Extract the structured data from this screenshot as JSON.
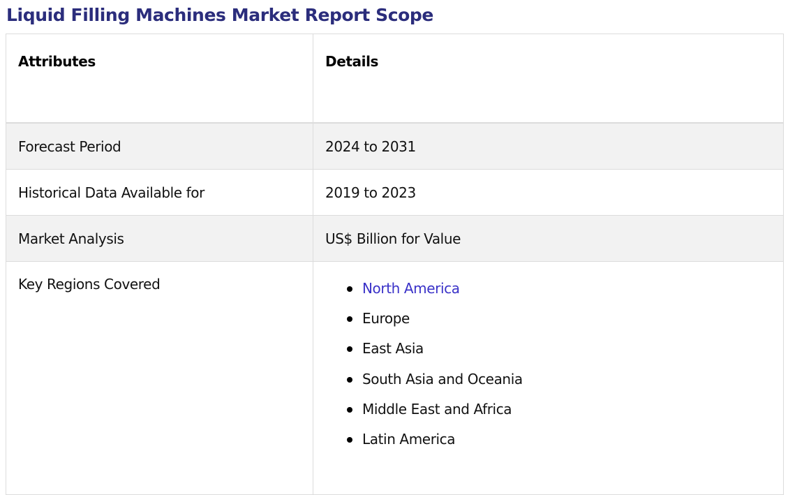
{
  "title": "Liquid Filling Machines Market Report Scope",
  "table": {
    "headers": [
      "Attributes",
      "Details"
    ],
    "rows": [
      {
        "attribute": "Forecast Period",
        "detail": "2024 to 2031"
      },
      {
        "attribute": "Historical Data Available for",
        "detail": "2019 to 2023"
      },
      {
        "attribute": "Market Analysis",
        "detail": "US$ Billion for Value"
      }
    ],
    "regions": {
      "attribute": "Key Regions Covered",
      "items": [
        "North America",
        "Europe",
        "East Asia",
        "South Asia and Oceania",
        "Middle East and Africa",
        "Latin America"
      ]
    }
  },
  "colors": {
    "title": "#2b2d7c",
    "link": "#3a32c8",
    "shaded_row": "#f2f2f2",
    "border": "#dcdcdc"
  }
}
